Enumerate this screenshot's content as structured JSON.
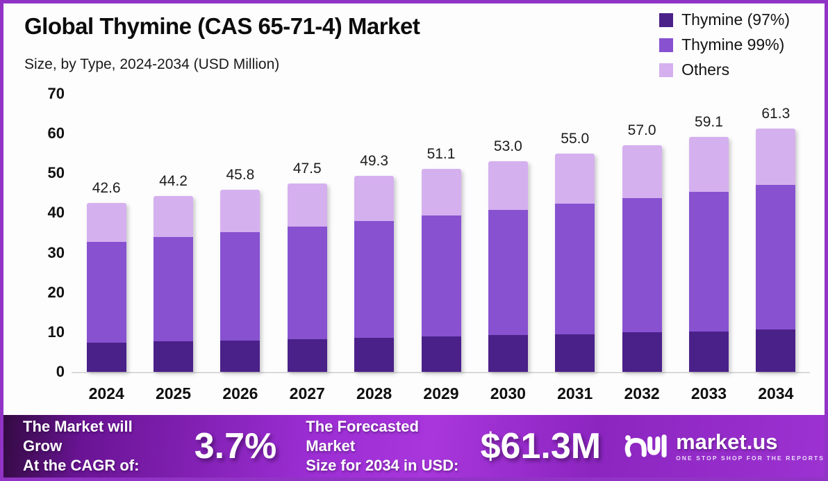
{
  "header": {
    "title": "Global Thymine (CAS 65-71-4) Market",
    "subtitle": "Size, by Type, 2024-2034 (USD Million)"
  },
  "legend": [
    {
      "label": "Thymine (97%)",
      "color": "#4a2089"
    },
    {
      "label": "Thymine 99%)",
      "color": "#8751d0"
    },
    {
      "label": "Others",
      "color": "#d5b0ef"
    }
  ],
  "chart_data": {
    "type": "bar",
    "stacked": true,
    "title": "Global Thymine (CAS 65-71-4) Market",
    "subtitle": "Size, by Type, 2024-2034 (USD Million)",
    "xlabel": "",
    "ylabel": "USD Million",
    "ylim": [
      0,
      70
    ],
    "yticks": [
      0,
      10,
      20,
      30,
      40,
      50,
      60,
      70
    ],
    "grid": false,
    "legend_position": "top-right",
    "categories": [
      "2024",
      "2025",
      "2026",
      "2027",
      "2028",
      "2029",
      "2030",
      "2031",
      "2032",
      "2033",
      "2034"
    ],
    "series": [
      {
        "name": "Thymine (97%)",
        "color": "#4a2089",
        "values": [
          7.4,
          7.7,
          7.9,
          8.2,
          8.5,
          8.9,
          9.2,
          9.5,
          9.9,
          10.2,
          10.6
        ]
      },
      {
        "name": "Thymine 99%)",
        "color": "#8751d0",
        "values": [
          25.3,
          26.3,
          27.3,
          28.3,
          29.4,
          30.4,
          31.5,
          32.8,
          33.9,
          35.2,
          36.5
        ]
      },
      {
        "name": "Others",
        "color": "#d5b0ef",
        "values": [
          9.9,
          10.2,
          10.6,
          11.0,
          11.4,
          11.8,
          12.3,
          12.7,
          13.2,
          13.7,
          14.2
        ]
      }
    ],
    "totals": [
      42.6,
      44.2,
      45.8,
      47.5,
      49.3,
      51.1,
      53.0,
      55.0,
      57.0,
      59.1,
      61.3
    ],
    "total_labels": [
      "42.6",
      "44.2",
      "45.8",
      "47.5",
      "49.3",
      "51.1",
      "53.0",
      "55.0",
      "57.0",
      "59.1",
      "61.3"
    ]
  },
  "footer": {
    "cagr_line1": "The Market will Grow",
    "cagr_line2": "At the CAGR of:",
    "cagr_value": "3.7%",
    "forecast_line1": "The Forecasted Market",
    "forecast_line2": "Size for 2034 in USD:",
    "forecast_value": "$61.3M",
    "brand_name": "market.us",
    "brand_tagline": "ONE STOP SHOP FOR THE REPORTS"
  },
  "colors": {
    "border": "#9134c6",
    "baseline": "#d9d9d9",
    "footer_gradient_start": "#330a42",
    "footer_gradient_mid": "#a836dc",
    "footer_gradient_end": "#9c32d1"
  }
}
